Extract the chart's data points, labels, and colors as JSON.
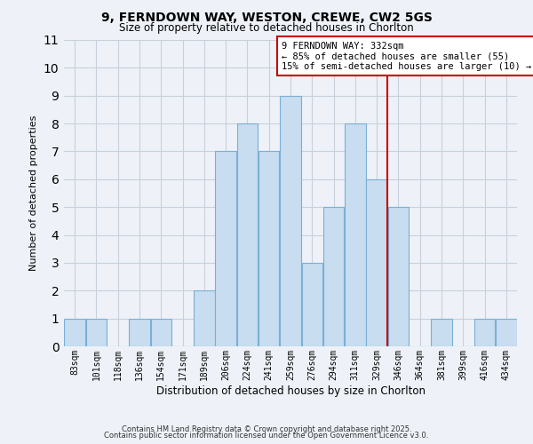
{
  "title": "9, FERNDOWN WAY, WESTON, CREWE, CW2 5GS",
  "subtitle": "Size of property relative to detached houses in Chorlton",
  "xlabel": "Distribution of detached houses by size in Chorlton",
  "ylabel": "Number of detached properties",
  "bar_labels": [
    "83sqm",
    "101sqm",
    "118sqm",
    "136sqm",
    "154sqm",
    "171sqm",
    "189sqm",
    "206sqm",
    "224sqm",
    "241sqm",
    "259sqm",
    "276sqm",
    "294sqm",
    "311sqm",
    "329sqm",
    "346sqm",
    "364sqm",
    "381sqm",
    "399sqm",
    "416sqm",
    "434sqm"
  ],
  "bar_values": [
    1,
    1,
    0,
    1,
    1,
    0,
    2,
    7,
    8,
    7,
    9,
    3,
    5,
    8,
    6,
    5,
    0,
    1,
    0,
    1,
    1
  ],
  "bar_color": "#c8ddf0",
  "bar_edge_color": "#7aafd4",
  "grid_color": "#c8d0dc",
  "background_color": "#eef2f8",
  "vline_x_index": 14,
  "vline_color": "#cc0000",
  "annotation_text": "9 FERNDOWN WAY: 332sqm\n← 85% of detached houses are smaller (55)\n15% of semi-detached houses are larger (10) →",
  "annotation_box_color": "#ffffff",
  "annotation_box_edge": "#cc0000",
  "ylim": [
    0,
    11
  ],
  "yticks": [
    0,
    1,
    2,
    3,
    4,
    5,
    6,
    7,
    8,
    9,
    10,
    11
  ],
  "footnote1": "Contains HM Land Registry data © Crown copyright and database right 2025.",
  "footnote2": "Contains public sector information licensed under the Open Government Licence v3.0."
}
